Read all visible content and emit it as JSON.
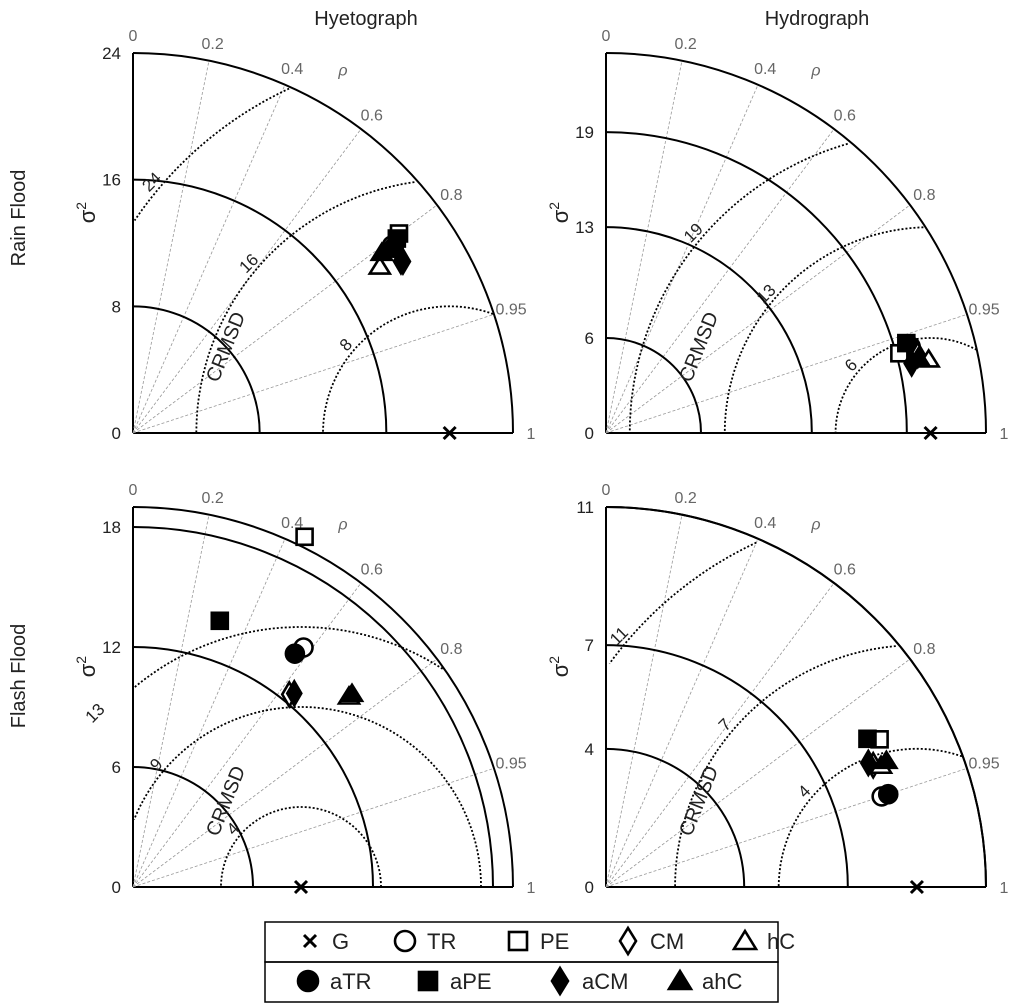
{
  "figure": {
    "col_titles": [
      "Hyetograph",
      "Hydrograph"
    ],
    "row_titles": [
      "Rain Flood",
      "Flash Flood"
    ],
    "corr_symbol": "ρ",
    "std_label": "σ",
    "std_label_sup": "2",
    "crmsd_label": "CRMSD"
  },
  "legend": {
    "row1": [
      {
        "key": "G",
        "label": "G",
        "marker": "x"
      },
      {
        "key": "TR",
        "label": "TR",
        "marker": "circle-open"
      },
      {
        "key": "PE",
        "label": "PE",
        "marker": "square-open"
      },
      {
        "key": "CM",
        "label": "CM",
        "marker": "diamond-open"
      },
      {
        "key": "hC",
        "label": "hC",
        "marker": "triangle-open"
      }
    ],
    "row2": [
      {
        "key": "aTR",
        "label": "aTR",
        "marker": "circle-filled"
      },
      {
        "key": "aPE",
        "label": "aPE",
        "marker": "square-filled"
      },
      {
        "key": "aCM",
        "label": "aCM",
        "marker": "diamond-filled"
      },
      {
        "key": "ahC",
        "label": "ahC",
        "marker": "triangle-filled"
      }
    ]
  },
  "chart_data": [
    {
      "type": "scatter",
      "subtype": "taylor-diagram",
      "row": "Rain Flood",
      "column": "Hyetograph",
      "std_max": 24,
      "std_ticks": [
        0,
        8,
        16,
        24
      ],
      "std_arcs": [
        8,
        16
      ],
      "outer_arc": 24,
      "crmsd_arcs": [
        8,
        16,
        24
      ],
      "crmsd_labels": [
        "8",
        "16",
        "24"
      ],
      "reference": {
        "name": "G",
        "std": 20
      },
      "corr_ticks": [
        "0",
        "0.2",
        "0.4",
        "0.6",
        "0.8",
        "0.95",
        "1"
      ],
      "points": [
        {
          "model": "TR",
          "std": 20.2,
          "corr": 0.81
        },
        {
          "model": "aTR",
          "std": 20.2,
          "corr": 0.815
        },
        {
          "model": "PE",
          "std": 21.0,
          "corr": 0.8
        },
        {
          "model": "aPE",
          "std": 20.7,
          "corr": 0.805
        },
        {
          "model": "CM",
          "std": 20.1,
          "corr": 0.842
        },
        {
          "model": "aCM",
          "std": 20.2,
          "corr": 0.844
        },
        {
          "model": "hC",
          "std": 18.8,
          "corr": 0.829
        },
        {
          "model": "ahC",
          "std": 19.4,
          "corr": 0.81
        }
      ]
    },
    {
      "type": "scatter",
      "subtype": "taylor-diagram",
      "row": "Rain Flood",
      "column": "Hydrograph",
      "std_max": 24,
      "std_ticks": [
        0,
        6,
        13,
        19
      ],
      "std_arcs": [
        6,
        13,
        19
      ],
      "outer_arc": 24,
      "crmsd_arcs": [
        6,
        13,
        19
      ],
      "crmsd_labels": [
        "6",
        "13",
        "19"
      ],
      "reference": {
        "name": "G",
        "std": 20.5
      },
      "corr_ticks": [
        "0",
        "0.2",
        "0.4",
        "0.6",
        "0.8",
        "0.95",
        "1"
      ],
      "points": [
        {
          "model": "TR",
          "std": 19.7,
          "corr": 0.964
        },
        {
          "model": "aTR",
          "std": 20.0,
          "corr": 0.962
        },
        {
          "model": "PE",
          "std": 19.2,
          "corr": 0.965
        },
        {
          "model": "aPE",
          "std": 19.8,
          "corr": 0.958
        },
        {
          "model": "CM",
          "std": 20.3,
          "corr": 0.97
        },
        {
          "model": "aCM",
          "std": 19.8,
          "corr": 0.975
        },
        {
          "model": "hC",
          "std": 20.9,
          "corr": 0.975
        },
        {
          "model": "ahC",
          "std": 20.3,
          "corr": 0.972
        }
      ]
    },
    {
      "type": "scatter",
      "subtype": "taylor-diagram",
      "row": "Flash Flood",
      "column": "Hyetograph",
      "std_max": 19,
      "std_ticks": [
        0,
        6,
        12,
        18
      ],
      "std_arcs": [
        6,
        12,
        18
      ],
      "outer_arc": 19,
      "crmsd_arcs": [
        4,
        9,
        13
      ],
      "crmsd_labels": [
        "4",
        "9",
        "13"
      ],
      "reference": {
        "name": "G",
        "std": 8.4
      },
      "corr_ticks": [
        "0",
        "0.2",
        "0.4",
        "0.6",
        "0.8",
        "0.95",
        "1"
      ],
      "points": [
        {
          "model": "TR",
          "std": 14.7,
          "corr": 0.58
        },
        {
          "model": "aTR",
          "std": 14.2,
          "corr": 0.57
        },
        {
          "model": "PE",
          "std": 19.5,
          "corr": 0.44
        },
        {
          "model": "aPE",
          "std": 14.0,
          "corr": 0.31
        },
        {
          "model": "CM",
          "std": 12.4,
          "corr": 0.63
        },
        {
          "model": "aCM",
          "std": 12.6,
          "corr": 0.64
        },
        {
          "model": "hC",
          "std": 14.4,
          "corr": 0.75
        },
        {
          "model": "ahC",
          "std": 14.6,
          "corr": 0.75
        }
      ]
    },
    {
      "type": "scatter",
      "subtype": "taylor-diagram",
      "row": "Flash Flood",
      "column": "Hydrograph",
      "std_max": 11,
      "std_ticks": [
        0,
        4,
        7,
        11
      ],
      "std_arcs": [
        4,
        7,
        11
      ],
      "outer_arc": 11,
      "crmsd_arcs": [
        4,
        7,
        11
      ],
      "crmsd_labels": [
        "4",
        "7",
        "11"
      ],
      "reference": {
        "name": "G",
        "std": 9.0
      },
      "corr_ticks": [
        "0",
        "0.2",
        "0.4",
        "0.6",
        "0.8",
        "0.95",
        "1"
      ],
      "points": [
        {
          "model": "TR",
          "std": 8.4,
          "corr": 0.95
        },
        {
          "model": "aTR",
          "std": 8.6,
          "corr": 0.95
        },
        {
          "model": "PE",
          "std": 9.0,
          "corr": 0.88
        },
        {
          "model": "aPE",
          "std": 8.7,
          "corr": 0.87
        },
        {
          "model": "CM",
          "std": 8.5,
          "corr": 0.91
        },
        {
          "model": "aCM",
          "std": 8.4,
          "corr": 0.904
        },
        {
          "model": "hC",
          "std": 8.7,
          "corr": 0.915
        },
        {
          "model": "ahC",
          "std": 8.9,
          "corr": 0.912
        }
      ]
    }
  ]
}
